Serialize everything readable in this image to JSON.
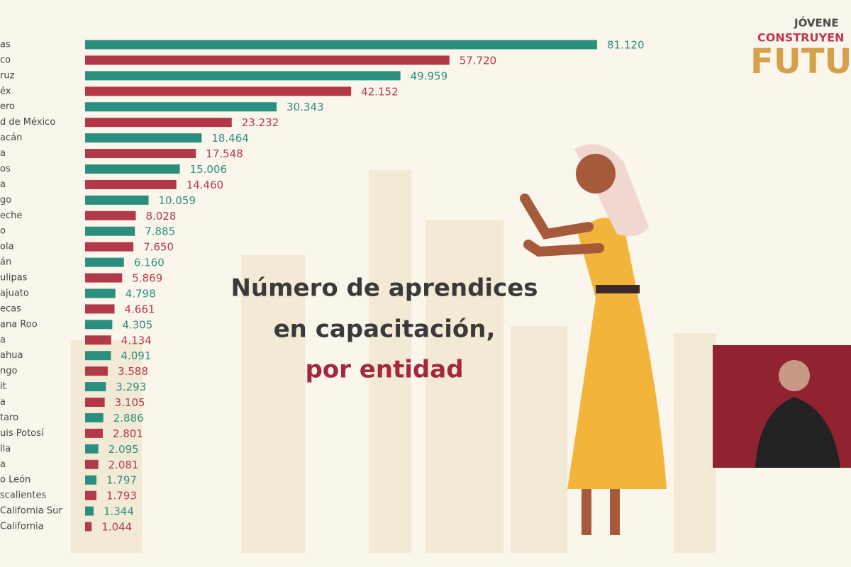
{
  "chart_data": {
    "type": "bar",
    "orientation": "horizontal",
    "title_lines": [
      "Número de aprendices",
      "en capacitación,",
      "por entidad"
    ],
    "categories": [
      "as",
      "co",
      "ruz",
      "éx",
      "ero",
      "d de México",
      "acán",
      "a",
      "os",
      "a",
      "go",
      "eche",
      "o",
      "ola",
      "án",
      "ulipas",
      "ajuato",
      "ecas",
      "ana Roo",
      "a",
      "ahua",
      "ngo",
      "it",
      "a",
      "taro",
      "uis Potosí",
      "lla",
      "a",
      "o León",
      "scalientes",
      "California Sur",
      "California"
    ],
    "values": [
      81120,
      57720,
      49959,
      42152,
      30343,
      23232,
      18464,
      17548,
      15006,
      14460,
      10059,
      8028,
      7885,
      7650,
      6160,
      5869,
      4798,
      4661,
      4305,
      4134,
      4091,
      3588,
      3293,
      3105,
      2886,
      2801,
      2095,
      2081,
      1797,
      1793,
      1344,
      1044
    ],
    "value_labels": [
      "81.120",
      "57.720",
      "49.959",
      "42.152",
      "30.343",
      "23.232",
      "18.464",
      "17.548",
      "15.006",
      "14.460",
      "10.059",
      "8.028",
      "7.885",
      "7.650",
      "6.160",
      "5.869",
      "4.798",
      "4.661",
      "4.305",
      "4.134",
      "4.091",
      "3.588",
      "3.293",
      "3.105",
      "2.886",
      "2.801",
      "2.095",
      "2.081",
      "1.797",
      "1.793",
      "1.344",
      "1.044"
    ],
    "colors": [
      "#2a8f7e",
      "#b23a48"
    ]
  },
  "logo": [
    "JÓVENE",
    "CONSTRUYEN",
    "FUTU"
  ]
}
